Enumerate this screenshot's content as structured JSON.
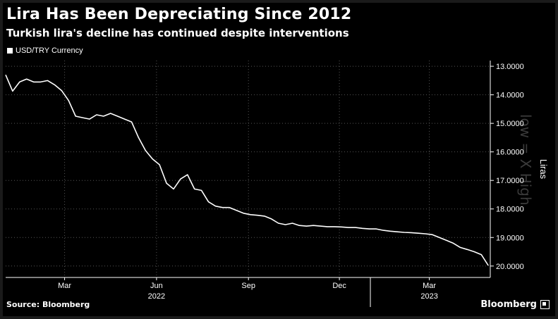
{
  "header": {
    "title": "Lira Has Been Depreciating Since 2012",
    "subtitle": "Turkish lira's decline has continued despite interventions"
  },
  "footer": {
    "source": "Source: Bloomberg",
    "brand": "Bloomberg"
  },
  "watermark": "low = X High",
  "chart_data": {
    "type": "line",
    "title": "Lira Has Been Depreciating Since 2012",
    "subtitle": "Turkish lira's decline has continued despite interventions",
    "ylabel": "Liras",
    "xlabel": "",
    "y_axis_inverted": true,
    "y_axis_position": "right",
    "ylim": [
      12.8,
      20.4
    ],
    "yticks": [
      13,
      14,
      15,
      16,
      17,
      18,
      19,
      20
    ],
    "ytick_labels": [
      "13.0000",
      "14.0000",
      "15.0000",
      "16.0000",
      "17.0000",
      "18.0000",
      "19.0000",
      "20.0000"
    ],
    "xlim": [
      "2022-01-01",
      "2023-05-01"
    ],
    "xticks": [
      {
        "date": "2022-03-01",
        "label": "Mar"
      },
      {
        "date": "2022-06-01",
        "label": "Jun"
      },
      {
        "date": "2022-09-01",
        "label": "Sep"
      },
      {
        "date": "2022-12-01",
        "label": "Dec"
      },
      {
        "date": "2023-03-01",
        "label": "Mar"
      }
    ],
    "year_labels": [
      {
        "date": "2022-06-01",
        "label": "2022"
      },
      {
        "date": "2023-03-01",
        "label": "2023"
      }
    ],
    "year_divider": "2023-01-01",
    "grid": true,
    "legend_position": "top-left",
    "series": [
      {
        "name": "USD/TRY Currency",
        "color": "#ffffff",
        "x": [
          "2022-01-01",
          "2022-01-08",
          "2022-01-15",
          "2022-01-22",
          "2022-01-29",
          "2022-02-05",
          "2022-02-12",
          "2022-02-19",
          "2022-02-26",
          "2022-03-05",
          "2022-03-12",
          "2022-03-19",
          "2022-03-26",
          "2022-04-02",
          "2022-04-09",
          "2022-04-16",
          "2022-04-23",
          "2022-04-30",
          "2022-05-07",
          "2022-05-14",
          "2022-05-21",
          "2022-05-28",
          "2022-06-04",
          "2022-06-11",
          "2022-06-18",
          "2022-06-25",
          "2022-07-02",
          "2022-07-09",
          "2022-07-16",
          "2022-07-23",
          "2022-07-30",
          "2022-08-06",
          "2022-08-13",
          "2022-08-20",
          "2022-08-27",
          "2022-09-03",
          "2022-09-10",
          "2022-09-17",
          "2022-09-24",
          "2022-10-01",
          "2022-10-08",
          "2022-10-15",
          "2022-10-22",
          "2022-10-29",
          "2022-11-05",
          "2022-11-12",
          "2022-11-19",
          "2022-11-26",
          "2022-12-03",
          "2022-12-10",
          "2022-12-17",
          "2022-12-24",
          "2022-12-31",
          "2023-01-07",
          "2023-01-14",
          "2023-01-21",
          "2023-01-28",
          "2023-02-04",
          "2023-02-11",
          "2023-02-18",
          "2023-02-25",
          "2023-03-04",
          "2023-03-11",
          "2023-03-18",
          "2023-03-25",
          "2023-04-01",
          "2023-04-08",
          "2023-04-15",
          "2023-04-22",
          "2023-04-29"
        ],
        "values": [
          13.3,
          13.87,
          13.55,
          13.45,
          13.55,
          13.55,
          13.5,
          13.65,
          13.85,
          14.2,
          14.75,
          14.8,
          14.85,
          14.7,
          14.75,
          14.65,
          14.75,
          14.85,
          14.95,
          15.5,
          15.95,
          16.25,
          16.45,
          17.1,
          17.3,
          16.95,
          16.8,
          17.3,
          17.35,
          17.75,
          17.9,
          17.95,
          17.95,
          18.05,
          18.15,
          18.2,
          18.22,
          18.25,
          18.35,
          18.5,
          18.55,
          18.5,
          18.58,
          18.6,
          18.58,
          18.6,
          18.62,
          18.62,
          18.63,
          18.65,
          18.65,
          18.68,
          18.7,
          18.7,
          18.75,
          18.78,
          18.8,
          18.82,
          18.83,
          18.85,
          18.87,
          18.9,
          19.0,
          19.1,
          19.2,
          19.35,
          19.42,
          19.5,
          19.6,
          19.98
        ]
      }
    ]
  }
}
